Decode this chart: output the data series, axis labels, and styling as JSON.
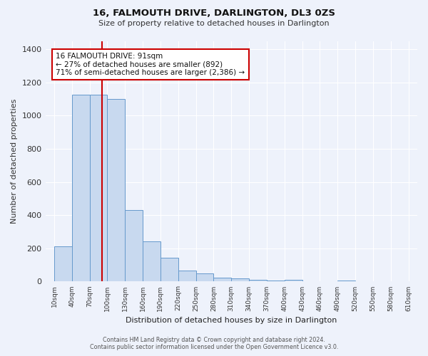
{
  "title": "16, FALMOUTH DRIVE, DARLINGTON, DL3 0ZS",
  "subtitle": "Size of property relative to detached houses in Darlington",
  "xlabel": "Distribution of detached houses by size in Darlington",
  "ylabel": "Number of detached properties",
  "bar_color": "#c8d9ef",
  "bar_edge_color": "#6699cc",
  "background_color": "#eef2fb",
  "grid_color": "#ffffff",
  "bin_starts": [
    10,
    40,
    70,
    100,
    130,
    160,
    190,
    220,
    250,
    280,
    310,
    340,
    370,
    400,
    430,
    460,
    490,
    520,
    550,
    580
  ],
  "bin_width": 30,
  "bar_heights": [
    210,
    1125,
    1125,
    1100,
    430,
    240,
    145,
    65,
    50,
    25,
    18,
    10,
    7,
    12,
    0,
    0,
    8,
    0,
    0,
    0
  ],
  "property_size": 91,
  "red_line_x": 91,
  "annotation_title": "16 FALMOUTH DRIVE: 91sqm",
  "annotation_line1": "← 27% of detached houses are smaller (892)",
  "annotation_line2": "71% of semi-detached houses are larger (2,386) →",
  "annotation_box_color": "#ffffff",
  "annotation_border_color": "#cc0000",
  "red_line_color": "#cc0000",
  "yticks": [
    0,
    200,
    400,
    600,
    800,
    1000,
    1200,
    1400
  ],
  "ylim": [
    0,
    1450
  ],
  "xlim_left": -5,
  "xlim_right": 625,
  "xtick_positions": [
    10,
    40,
    70,
    100,
    130,
    160,
    190,
    220,
    250,
    280,
    310,
    340,
    370,
    400,
    430,
    460,
    490,
    520,
    550,
    580,
    610
  ],
  "xtick_labels": [
    "10sqm",
    "40sqm",
    "70sqm",
    "100sqm",
    "130sqm",
    "160sqm",
    "190sqm",
    "220sqm",
    "250sqm",
    "280sqm",
    "310sqm",
    "340sqm",
    "370sqm",
    "400sqm",
    "430sqm",
    "460sqm",
    "490sqm",
    "520sqm",
    "550sqm",
    "580sqm",
    "610sqm"
  ],
  "footer_line1": "Contains HM Land Registry data © Crown copyright and database right 2024.",
  "footer_line2": "Contains public sector information licensed under the Open Government Licence v3.0."
}
